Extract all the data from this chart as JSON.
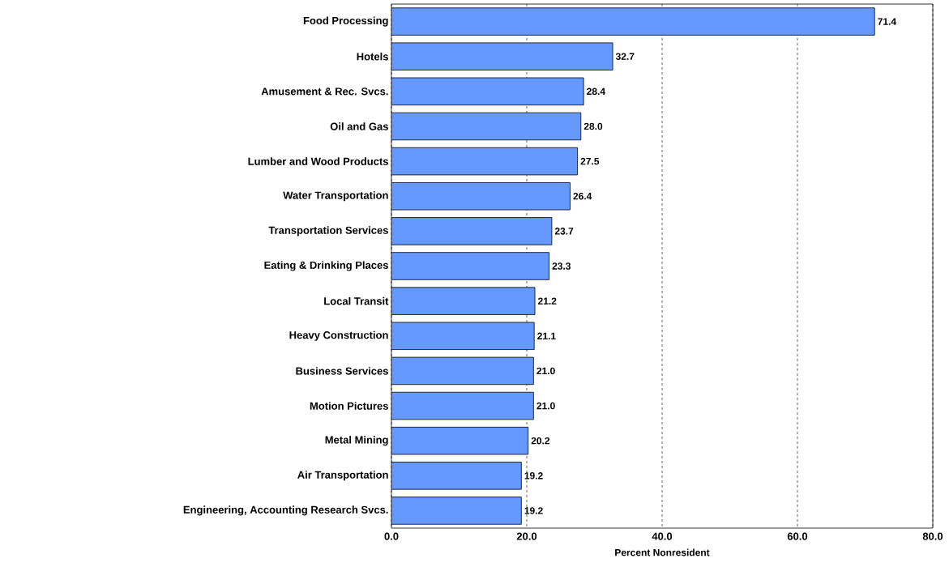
{
  "chart_data": {
    "type": "bar",
    "orientation": "horizontal",
    "xlabel": "Percent Nonresident",
    "categories": [
      "Food Processing",
      "Hotels",
      "Amusement & Rec. Svcs.",
      "Oil and Gas",
      "Lumber and Wood Products",
      "Water Transportation",
      "Transportation Services",
      "Eating & Drinking Places",
      "Local Transit",
      "Heavy Construction",
      "Business Services",
      "Motion Pictures",
      "Metal Mining",
      "Air Transportation",
      "Engineering, Accounting Research Svcs."
    ],
    "values": [
      71.4,
      32.7,
      28.4,
      28.0,
      27.5,
      26.4,
      23.7,
      23.3,
      21.2,
      21.1,
      21.0,
      21.0,
      20.2,
      19.2,
      19.2
    ],
    "value_labels": [
      "71.4",
      "32.7",
      "28.4",
      "28.0",
      "27.5",
      "26.4",
      "23.7",
      "23.3",
      "21.2",
      "21.1",
      "21.0",
      "21.0",
      "20.2",
      "19.2",
      "19.2"
    ],
    "color": "#6699ff",
    "xlim": [
      0,
      80
    ],
    "xticks": [
      {
        "value": 0,
        "label": "0.0"
      },
      {
        "value": 20,
        "label": "20.0"
      },
      {
        "value": 40,
        "label": "40.0"
      },
      {
        "value": 60,
        "label": "60.0"
      },
      {
        "value": 80,
        "label": "80.0"
      }
    ],
    "grid": "x"
  }
}
